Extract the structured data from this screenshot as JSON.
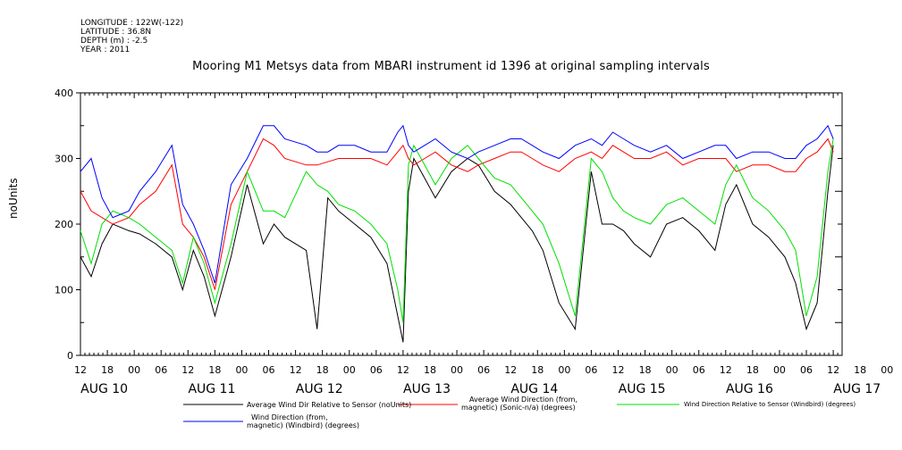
{
  "meta": {
    "longitude": "LONGITUDE : 122W(-122)",
    "latitude": "LATITUDE : 36.8N",
    "depth": "DEPTH (m) : -2.5",
    "year": "YEAR : 2011"
  },
  "chart_data": {
    "type": "line",
    "title": "Mooring M1 Metsys data from MBARI instrument id 1396 at original sampling intervals",
    "ylabel": "noUnits",
    "xlabel": "",
    "ylim": [
      0,
      400
    ],
    "yticks": [
      "0",
      "100",
      "200",
      "300",
      "400"
    ],
    "x_hour_ticks": [
      "12",
      "18",
      "00",
      "06",
      "12",
      "18",
      "00",
      "06",
      "12",
      "18",
      "00",
      "06",
      "12",
      "18",
      "00",
      "06",
      "12",
      "18",
      "00",
      "06",
      "12",
      "18",
      "00",
      "06",
      "12",
      "18",
      "00",
      "06",
      "12",
      "18",
      "00",
      "06",
      "12"
    ],
    "day_labels": [
      "AUG 10",
      "AUG 11",
      "AUG 12",
      "AUG 13",
      "AUG 14",
      "AUG 15",
      "AUG 16",
      "AUG 17"
    ],
    "xlim_days": [
      0,
      7.0
    ],
    "grid": false,
    "legend": "bottom",
    "series": [
      {
        "name": "Average Wind Dir Relative to Sensor (noUnits)",
        "color": "#000000",
        "x": [
          0.0,
          0.1,
          0.2,
          0.3,
          0.45,
          0.55,
          0.7,
          0.85,
          0.95,
          1.05,
          1.15,
          1.25,
          1.4,
          1.55,
          1.7,
          1.8,
          1.9,
          2.1,
          2.2,
          2.3,
          2.4,
          2.55,
          2.7,
          2.85,
          2.95,
          3.0,
          3.05,
          3.1,
          3.2,
          3.3,
          3.45,
          3.6,
          3.7,
          3.85,
          4.0,
          4.1,
          4.2,
          4.3,
          4.45,
          4.6,
          4.75,
          4.85,
          4.95,
          5.05,
          5.15,
          5.3,
          5.45,
          5.6,
          5.75,
          5.9,
          6.0,
          6.1,
          6.25,
          6.4,
          6.55,
          6.65,
          6.75,
          6.85,
          6.95,
          7.0
        ],
        "y": [
          150,
          120,
          170,
          200,
          190,
          185,
          170,
          150,
          100,
          160,
          120,
          60,
          150,
          260,
          170,
          200,
          180,
          160,
          40,
          240,
          220,
          200,
          180,
          140,
          60,
          20,
          250,
          300,
          270,
          240,
          280,
          300,
          290,
          250,
          230,
          210,
          190,
          160,
          80,
          40,
          280,
          200,
          200,
          190,
          170,
          150,
          200,
          210,
          190,
          160,
          230,
          260,
          200,
          180,
          150,
          110,
          40,
          80,
          250,
          320
        ]
      },
      {
        "name": "Average Wind Direction (from, magnetic) (Sonic-n/a) (degrees)",
        "color": "#ff0000",
        "x": [
          0.0,
          0.1,
          0.2,
          0.3,
          0.45,
          0.55,
          0.7,
          0.85,
          0.95,
          1.05,
          1.15,
          1.25,
          1.4,
          1.55,
          1.7,
          1.8,
          1.9,
          2.1,
          2.2,
          2.3,
          2.4,
          2.55,
          2.7,
          2.85,
          2.95,
          3.0,
          3.05,
          3.1,
          3.2,
          3.3,
          3.45,
          3.6,
          3.7,
          3.85,
          4.0,
          4.1,
          4.2,
          4.3,
          4.45,
          4.6,
          4.75,
          4.85,
          4.95,
          5.05,
          5.15,
          5.3,
          5.45,
          5.6,
          5.75,
          5.9,
          6.0,
          6.1,
          6.25,
          6.4,
          6.55,
          6.65,
          6.75,
          6.85,
          6.95,
          7.0
        ],
        "y": [
          250,
          220,
          210,
          200,
          210,
          230,
          250,
          290,
          200,
          180,
          150,
          100,
          230,
          280,
          330,
          320,
          300,
          290,
          290,
          295,
          300,
          300,
          300,
          290,
          310,
          320,
          300,
          290,
          300,
          310,
          290,
          280,
          290,
          300,
          310,
          310,
          300,
          290,
          280,
          300,
          310,
          300,
          320,
          310,
          300,
          300,
          310,
          290,
          300,
          300,
          300,
          280,
          290,
          290,
          280,
          280,
          300,
          310,
          330,
          310
        ]
      },
      {
        "name": "Wind Direction Relative to Sensor (Windbird) (degrees)",
        "color": "#00e000",
        "x": [
          0.0,
          0.1,
          0.2,
          0.3,
          0.45,
          0.55,
          0.7,
          0.85,
          0.95,
          1.05,
          1.15,
          1.25,
          1.4,
          1.55,
          1.7,
          1.8,
          1.9,
          2.1,
          2.2,
          2.3,
          2.4,
          2.55,
          2.7,
          2.85,
          2.95,
          3.0,
          3.05,
          3.1,
          3.2,
          3.3,
          3.45,
          3.6,
          3.7,
          3.85,
          4.0,
          4.1,
          4.2,
          4.3,
          4.45,
          4.6,
          4.75,
          4.85,
          4.95,
          5.05,
          5.15,
          5.3,
          5.45,
          5.6,
          5.75,
          5.9,
          6.0,
          6.1,
          6.25,
          6.4,
          6.55,
          6.65,
          6.75,
          6.85,
          6.95,
          7.0
        ],
        "y": [
          190,
          140,
          200,
          220,
          210,
          200,
          180,
          160,
          110,
          180,
          140,
          80,
          170,
          280,
          220,
          220,
          210,
          280,
          260,
          250,
          230,
          220,
          200,
          170,
          100,
          50,
          290,
          320,
          290,
          260,
          300,
          320,
          300,
          270,
          260,
          240,
          220,
          200,
          140,
          60,
          300,
          280,
          240,
          220,
          210,
          200,
          230,
          240,
          220,
          200,
          260,
          290,
          240,
          220,
          190,
          160,
          60,
          120,
          280,
          330
        ]
      },
      {
        "name": "Wind Direction (from, magnetic) (Windbird) (degrees)",
        "color": "#0000ff",
        "x": [
          0.0,
          0.1,
          0.2,
          0.3,
          0.45,
          0.55,
          0.7,
          0.85,
          0.95,
          1.05,
          1.15,
          1.25,
          1.4,
          1.55,
          1.7,
          1.8,
          1.9,
          2.1,
          2.2,
          2.3,
          2.4,
          2.55,
          2.7,
          2.85,
          2.95,
          3.0,
          3.05,
          3.1,
          3.2,
          3.3,
          3.45,
          3.6,
          3.7,
          3.85,
          4.0,
          4.1,
          4.2,
          4.3,
          4.45,
          4.6,
          4.75,
          4.85,
          4.95,
          5.05,
          5.15,
          5.3,
          5.45,
          5.6,
          5.75,
          5.9,
          6.0,
          6.1,
          6.25,
          6.4,
          6.55,
          6.65,
          6.75,
          6.85,
          6.95,
          7.0
        ],
        "y": [
          280,
          300,
          240,
          210,
          220,
          250,
          280,
          320,
          230,
          200,
          160,
          110,
          260,
          300,
          350,
          350,
          330,
          320,
          310,
          310,
          320,
          320,
          310,
          310,
          340,
          350,
          320,
          310,
          320,
          330,
          310,
          300,
          310,
          320,
          330,
          330,
          320,
          310,
          300,
          320,
          330,
          320,
          340,
          330,
          320,
          310,
          320,
          300,
          310,
          320,
          320,
          300,
          310,
          310,
          300,
          300,
          320,
          330,
          350,
          330
        ]
      }
    ]
  },
  "legend": {
    "black": "Average Wind Dir Relative to Sensor (noUnits)",
    "red_1": "Average Wind Direction (from,",
    "red_2": "magnetic) (Sonic-n/a) (degrees)",
    "green": "Wind Direction Relative to Sensor (Windbird) (degrees)",
    "blue_1": "Wind Direction (from,",
    "blue_2": "magnetic) (Windbird) (degrees)"
  }
}
